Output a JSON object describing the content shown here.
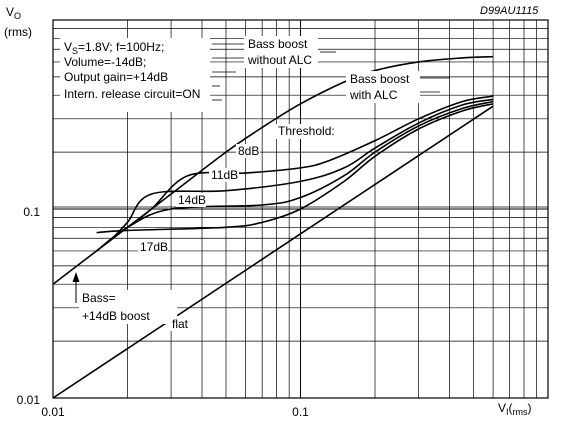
{
  "chart_data": {
    "type": "line",
    "code": "D99AU1115",
    "y_axis": {
      "label": "V",
      "label_sub": "O",
      "unit": "rms",
      "scale": "log",
      "range": [
        0.01,
        1
      ],
      "ticks": [
        {
          "value": 0.01,
          "label": "0.01"
        },
        {
          "value": 0.1,
          "label": "0.1"
        }
      ]
    },
    "x_axis": {
      "label": "V",
      "label_sub": "I",
      "unit": "rms",
      "scale": "log",
      "range": [
        0.01,
        1
      ],
      "ticks": [
        {
          "value": 0.01,
          "label": "0.01"
        },
        {
          "value": 0.1,
          "label": "0.1"
        }
      ]
    },
    "grid": true,
    "conditions": [
      {
        "pre": "V",
        "sub": "S",
        "post": "=1.8V; f=100Hz;"
      },
      {
        "pre": "Volume=-14dB;",
        "sub": "",
        "post": ""
      },
      {
        "pre": "Output gain=+14dB",
        "sub": "",
        "post": ""
      },
      {
        "pre": "Intern. release circuit=ON",
        "sub": "",
        "post": ""
      }
    ],
    "labels": {
      "threshold": "Threshold:",
      "bass": "Bass=",
      "bass_boost": "+14dB boost"
    },
    "series": [
      {
        "name": "Bass boost without ALC",
        "label_lines": [
          "Bass boost",
          "without ALC"
        ],
        "x": [
          0.01,
          0.013,
          0.02,
          0.03,
          0.05,
          0.07,
          0.1,
          0.15,
          0.2,
          0.3,
          0.45,
          0.6
        ],
        "y": [
          0.04,
          0.052,
          0.08,
          0.12,
          0.2,
          0.27,
          0.36,
          0.47,
          0.54,
          0.6,
          0.63,
          0.64
        ]
      },
      {
        "name": "Bass boost with ALC",
        "label_lines": [
          "Bass boost",
          "with ALC"
        ],
        "x": [
          0.6
        ],
        "y": [
          0.395
        ]
      },
      {
        "name": "8dB",
        "x": [
          0.02,
          0.025,
          0.035,
          0.06,
          0.1,
          0.13,
          0.2,
          0.3,
          0.45,
          0.6
        ],
        "y": [
          0.08,
          0.1,
          0.15,
          0.155,
          0.165,
          0.18,
          0.23,
          0.3,
          0.37,
          0.395
        ]
      },
      {
        "name": "11dB",
        "x": [
          0.017,
          0.02,
          0.025,
          0.05,
          0.1,
          0.15,
          0.2,
          0.3,
          0.45,
          0.6
        ],
        "y": [
          0.068,
          0.085,
          0.12,
          0.125,
          0.14,
          0.165,
          0.21,
          0.285,
          0.355,
          0.38
        ]
      },
      {
        "name": "14dB",
        "x": [
          0.015,
          0.02,
          0.03,
          0.07,
          0.1,
          0.15,
          0.2,
          0.3,
          0.45,
          0.6
        ],
        "y": [
          0.06,
          0.08,
          0.1,
          0.105,
          0.115,
          0.15,
          0.2,
          0.275,
          0.34,
          0.37
        ]
      },
      {
        "name": "17dB",
        "x": [
          0.015,
          0.02,
          0.05,
          0.07,
          0.1,
          0.15,
          0.2,
          0.3,
          0.45,
          0.6
        ],
        "y": [
          0.075,
          0.077,
          0.08,
          0.085,
          0.1,
          0.14,
          0.19,
          0.265,
          0.33,
          0.36
        ]
      },
      {
        "name": "flat",
        "x": [
          0.01,
          0.6
        ],
        "y": [
          0.01,
          0.35
        ]
      }
    ]
  }
}
